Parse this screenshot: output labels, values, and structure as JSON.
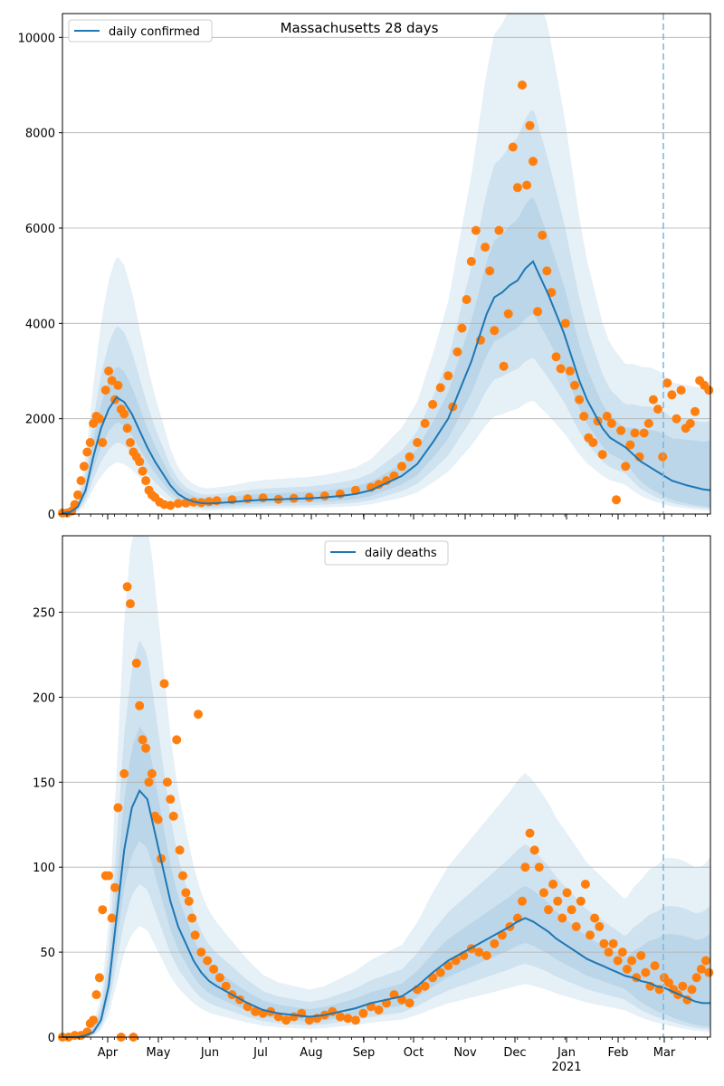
{
  "chart_data": [
    {
      "type": "line",
      "title": "Massachusetts 28 days",
      "xlabel": "",
      "ylabel": "",
      "legend": "top-left",
      "grid": "horizontal",
      "ylim": [
        0,
        10500
      ],
      "yticks": [
        0,
        2000,
        4000,
        6000,
        8000,
        10000
      ],
      "series": [
        {
          "name": "daily confirmed",
          "kind": "line",
          "color": "#1f77b4",
          "x": [
            0,
            5,
            10,
            15,
            20,
            25,
            30,
            35,
            40,
            45,
            50,
            55,
            60,
            65,
            70,
            75,
            80,
            85,
            90,
            95,
            100,
            110,
            120,
            130,
            140,
            150,
            160,
            170,
            180,
            190,
            200,
            210,
            220,
            230,
            240,
            250,
            255,
            260,
            265,
            270,
            275,
            280,
            285,
            290,
            295,
            300,
            305,
            310,
            315,
            320,
            325,
            330,
            335,
            340,
            345,
            350,
            355,
            360,
            365,
            370,
            375,
            380,
            385,
            390,
            395,
            400,
            405,
            410,
            415,
            420
          ],
          "values": [
            20,
            40,
            150,
            500,
            1200,
            1800,
            2200,
            2450,
            2350,
            2100,
            1750,
            1400,
            1100,
            850,
            600,
            420,
            320,
            260,
            230,
            220,
            230,
            250,
            280,
            300,
            310,
            320,
            330,
            350,
            380,
            420,
            500,
            650,
            800,
            1050,
            1500,
            2000,
            2400,
            2800,
            3200,
            3700,
            4200,
            4550,
            4650,
            4800,
            4900,
            5150,
            5300,
            4950,
            4600,
            4200,
            3800,
            3300,
            2800,
            2400,
            2100,
            1800,
            1600,
            1500,
            1400,
            1250,
            1100,
            1000,
            900,
            800,
            700,
            650,
            600,
            560,
            520,
            500
          ]
        },
        {
          "name": "",
          "kind": "scatter",
          "color": "#ff7f0e",
          "x": [
            0,
            3,
            6,
            8,
            10,
            12,
            14,
            16,
            18,
            20,
            22,
            24,
            26,
            28,
            30,
            32,
            34,
            36,
            38,
            40,
            42,
            44,
            46,
            48,
            50,
            52,
            54,
            56,
            58,
            60,
            63,
            66,
            70,
            75,
            80,
            85,
            90,
            95,
            100,
            110,
            120,
            130,
            140,
            150,
            160,
            170,
            180,
            190,
            200,
            205,
            210,
            215,
            220,
            225,
            230,
            235,
            240,
            245,
            250,
            253,
            256,
            259,
            262,
            265,
            268,
            271,
            274,
            277,
            280,
            283,
            286,
            289,
            292,
            295,
            298,
            301,
            303,
            305,
            308,
            311,
            314,
            317,
            320,
            323,
            326,
            329,
            332,
            335,
            338,
            341,
            344,
            347,
            350,
            353,
            356,
            359,
            362,
            365,
            368,
            371,
            374,
            377,
            380,
            383,
            386,
            389,
            392,
            395,
            398,
            401,
            404,
            407,
            410,
            413,
            416,
            419
          ],
          "values": [
            20,
            20,
            60,
            200,
            400,
            700,
            1000,
            1300,
            1500,
            1900,
            2050,
            2000,
            1500,
            2600,
            3000,
            2800,
            2400,
            2700,
            2200,
            2100,
            1800,
            1500,
            1300,
            1200,
            1100,
            900,
            700,
            500,
            400,
            350,
            250,
            200,
            180,
            220,
            230,
            250,
            240,
            260,
            280,
            300,
            320,
            340,
            310,
            330,
            350,
            380,
            420,
            500,
            560,
            620,
            700,
            800,
            1000,
            1200,
            1500,
            1900,
            2300,
            2650,
            2900,
            2250,
            3400,
            3900,
            4500,
            5300,
            5950,
            3650,
            5600,
            5100,
            3850,
            5950,
            3100,
            4200,
            7700,
            6850,
            9000,
            6900,
            8150,
            7400,
            4250,
            5850,
            5100,
            4650,
            3300,
            3050,
            4000,
            3000,
            2700,
            2400,
            2050,
            1600,
            1500,
            1950,
            1250,
            2050,
            1900,
            300,
            1750,
            1000,
            1450,
            1700,
            1200,
            1700,
            1900,
            2400,
            2200,
            1200,
            2750,
            2500,
            2000,
            2600,
            1800,
            1900,
            2150,
            2800,
            2700,
            2600
          ]
        }
      ]
    },
    {
      "type": "line",
      "title": "",
      "xlabel": "",
      "ylabel": "",
      "legend": "top-center",
      "grid": "horizontal",
      "ylim": [
        0,
        295
      ],
      "yticks": [
        0,
        50,
        100,
        150,
        200,
        250
      ],
      "xticks": [
        "Apr",
        "May",
        "Jun",
        "Jul",
        "Aug",
        "Sep",
        "Oct",
        "Nov",
        "Dec",
        "Jan",
        "Feb",
        "Mar"
      ],
      "xsublabel": "2021",
      "series": [
        {
          "name": "daily deaths",
          "kind": "line",
          "color": "#1f77b4",
          "x": [
            0,
            5,
            10,
            15,
            20,
            25,
            30,
            35,
            40,
            45,
            50,
            55,
            60,
            65,
            70,
            75,
            80,
            85,
            90,
            95,
            100,
            110,
            120,
            130,
            140,
            150,
            160,
            170,
            180,
            190,
            200,
            210,
            220,
            230,
            240,
            250,
            260,
            270,
            280,
            290,
            295,
            300,
            305,
            310,
            315,
            320,
            325,
            330,
            335,
            340,
            345,
            350,
            355,
            360,
            365,
            370,
            375,
            380,
            385,
            390,
            395,
            400,
            405,
            410,
            415,
            420
          ],
          "values": [
            0,
            0,
            0,
            1,
            3,
            10,
            30,
            70,
            110,
            135,
            145,
            140,
            120,
            100,
            80,
            65,
            55,
            45,
            38,
            33,
            30,
            25,
            20,
            16,
            14,
            13,
            12,
            13,
            15,
            17,
            20,
            22,
            24,
            30,
            38,
            45,
            50,
            55,
            60,
            65,
            68,
            70,
            68,
            65,
            62,
            58,
            55,
            52,
            49,
            46,
            44,
            42,
            40,
            38,
            36,
            35,
            33,
            32,
            30,
            29,
            27,
            25,
            23,
            21,
            20,
            20
          ]
        },
        {
          "name": "",
          "kind": "scatter",
          "color": "#ff7f0e",
          "x": [
            0,
            4,
            8,
            12,
            16,
            18,
            20,
            22,
            24,
            26,
            28,
            30,
            32,
            34,
            36,
            38,
            40,
            42,
            44,
            46,
            48,
            50,
            52,
            54,
            56,
            58,
            60,
            62,
            64,
            66,
            68,
            70,
            72,
            74,
            76,
            78,
            80,
            82,
            84,
            86,
            88,
            90,
            94,
            98,
            102,
            106,
            110,
            115,
            120,
            125,
            130,
            135,
            140,
            145,
            150,
            155,
            160,
            165,
            170,
            175,
            180,
            185,
            190,
            195,
            200,
            205,
            210,
            215,
            220,
            225,
            230,
            235,
            240,
            245,
            250,
            255,
            260,
            265,
            270,
            275,
            280,
            285,
            290,
            295,
            298,
            300,
            303,
            306,
            309,
            312,
            315,
            318,
            321,
            324,
            327,
            330,
            333,
            336,
            339,
            342,
            345,
            348,
            351,
            354,
            357,
            360,
            363,
            366,
            369,
            372,
            375,
            378,
            381,
            384,
            387,
            390,
            393,
            396,
            399,
            402,
            405,
            408,
            411,
            414,
            417,
            419
          ],
          "values": [
            0,
            0,
            1,
            1,
            3,
            8,
            10,
            25,
            35,
            75,
            95,
            95,
            70,
            88,
            135,
            0,
            155,
            265,
            255,
            0,
            220,
            195,
            175,
            170,
            150,
            155,
            130,
            128,
            105,
            208,
            150,
            140,
            130,
            175,
            110,
            95,
            85,
            80,
            70,
            60,
            190,
            50,
            45,
            40,
            35,
            30,
            25,
            22,
            18,
            15,
            14,
            15,
            12,
            10,
            12,
            14,
            10,
            11,
            13,
            15,
            12,
            11,
            10,
            14,
            18,
            16,
            20,
            25,
            22,
            20,
            28,
            30,
            35,
            38,
            42,
            45,
            48,
            52,
            50,
            48,
            55,
            60,
            65,
            70,
            80,
            100,
            120,
            110,
            100,
            85,
            75,
            90,
            80,
            70,
            85,
            75,
            65,
            80,
            90,
            60,
            70,
            65,
            55,
            50,
            55,
            45,
            50,
            40,
            45,
            35,
            48,
            38,
            30,
            42,
            28,
            35,
            32,
            28,
            25,
            30,
            22,
            28,
            35,
            40,
            45,
            38
          ]
        }
      ]
    }
  ]
}
